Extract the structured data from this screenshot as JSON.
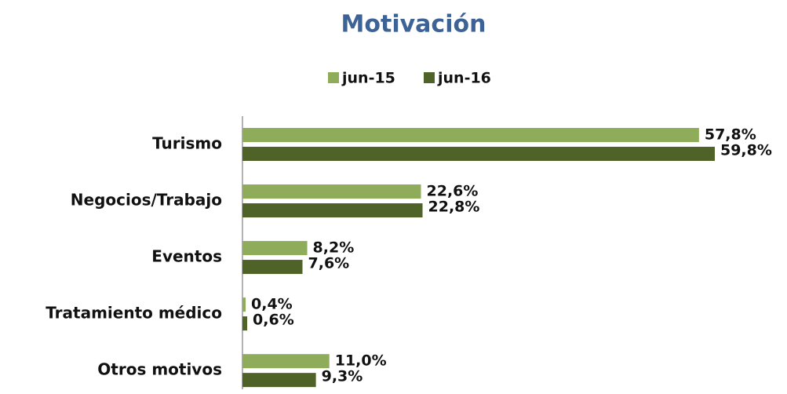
{
  "chart_data": {
    "type": "bar",
    "orientation": "horizontal",
    "title": "Motivación",
    "categories": [
      "Turismo",
      "Negocios/Trabajo",
      "Eventos",
      "Tratamiento médico",
      "Otros motivos"
    ],
    "series": [
      {
        "name": "jun-15",
        "color": "#8fac5a",
        "values": [
          57.8,
          22.6,
          8.2,
          0.4,
          11.0
        ],
        "value_labels": [
          "57,8%",
          "22,6%",
          "8,2%",
          "0,4%",
          "11,0%"
        ]
      },
      {
        "name": "jun-16",
        "color": "#4f6228",
        "values": [
          59.8,
          22.8,
          7.6,
          0.6,
          9.3
        ],
        "value_labels": [
          "59,8%",
          "22,8%",
          "7,6%",
          "0,6%",
          "9,3%"
        ]
      }
    ],
    "xlim": [
      0,
      60
    ],
    "legend": "top"
  }
}
